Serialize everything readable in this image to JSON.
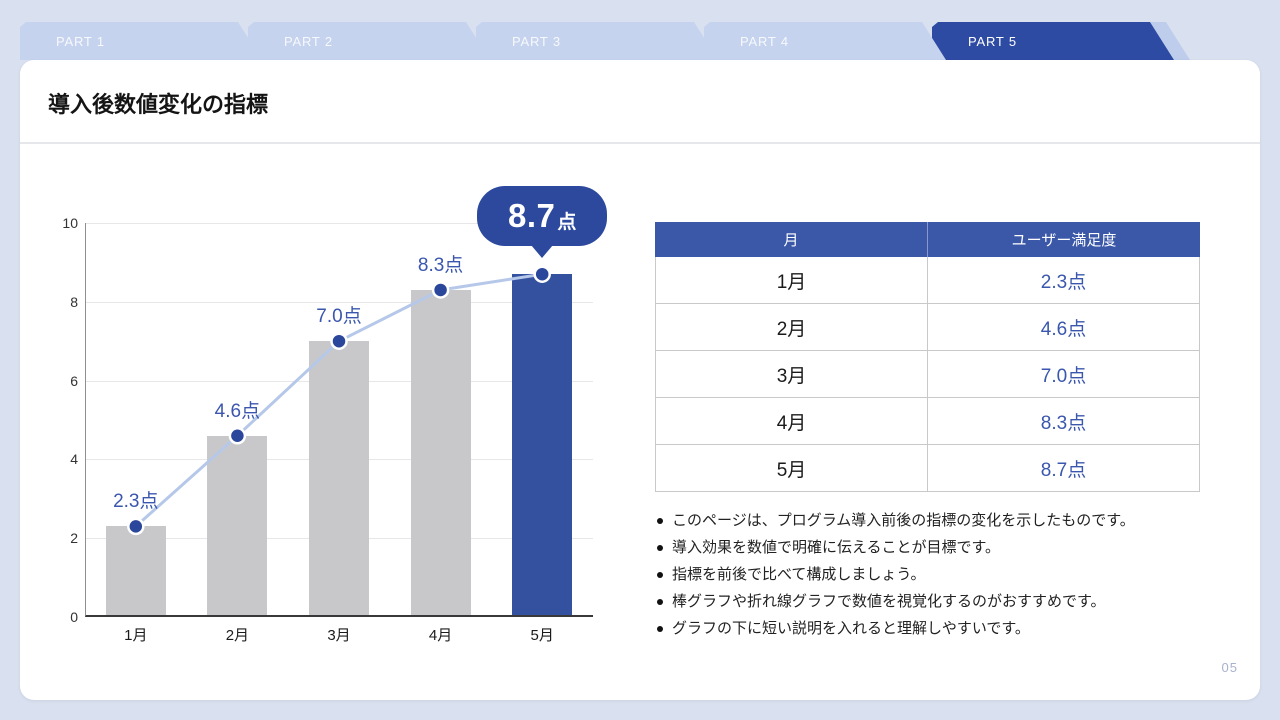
{
  "page": {
    "number": "05"
  },
  "tabs": {
    "items": [
      {
        "label": "PART 1",
        "active": false
      },
      {
        "label": "PART 2",
        "active": false
      },
      {
        "label": "PART 3",
        "active": false
      },
      {
        "label": "PART 4",
        "active": false
      },
      {
        "label": "PART 5",
        "active": true
      }
    ]
  },
  "header": {
    "title": "導入後数値変化の指標"
  },
  "chart_data": {
    "type": "bar",
    "subtype": "bar with line overlay (combo)",
    "title": "",
    "xlabel": "",
    "ylabel": "",
    "categories": [
      "1月",
      "2月",
      "3月",
      "4月",
      "5月"
    ],
    "series": [
      {
        "name": "ユーザー満足度（棒）",
        "type": "bar",
        "values": [
          2.3,
          4.6,
          7.0,
          8.3,
          8.7
        ]
      },
      {
        "name": "ユーザー満足度（折れ線）",
        "type": "line",
        "values": [
          2.3,
          4.6,
          7.0,
          8.3,
          8.7
        ]
      }
    ],
    "point_labels": [
      "2.3点",
      "4.6点",
      "7.0点",
      "8.3点",
      "8.7点"
    ],
    "callout": {
      "index": 4,
      "value": "8.7",
      "unit": "点"
    },
    "ylim": [
      0,
      10
    ],
    "yticks": [
      0,
      2,
      4,
      6,
      8,
      10
    ],
    "grid": true,
    "legend": "none",
    "highlight_index": 4,
    "colors": {
      "bar": "#c8c8ca",
      "highlight_bar": "#33519f",
      "line": "#b6c8e9",
      "marker": "#2b479c",
      "point_label": "#3a56ae",
      "callout_bg": "#2c499e"
    }
  },
  "table": {
    "headers": [
      "月",
      "ユーザー満足度"
    ],
    "rows": [
      [
        "1月",
        "2.3点"
      ],
      [
        "2月",
        "4.6点"
      ],
      [
        "3月",
        "7.0点"
      ],
      [
        "4月",
        "8.3点"
      ],
      [
        "5月",
        "8.7点"
      ]
    ]
  },
  "notes": {
    "items": [
      "このページは、プログラム導入前後の指標の変化を示したものです。",
      "導入効果を数値で明確に伝えることが目標です。",
      "指標を前後で比べて構成しましょう。",
      "棒グラフや折れ線グラフで数値を視覚化するのがおすすめです。",
      "グラフの下に短い説明を入れると理解しやすいです。"
    ]
  },
  "colors": {
    "background": "#d9e0ef",
    "tab_inactive": "#c6d3ee",
    "tab_active": "#2e4ba3",
    "card": "#ffffff",
    "table_header_bg": "#3a57a8",
    "value_text": "#3a57ad",
    "page_number": "#a9b2cd"
  }
}
